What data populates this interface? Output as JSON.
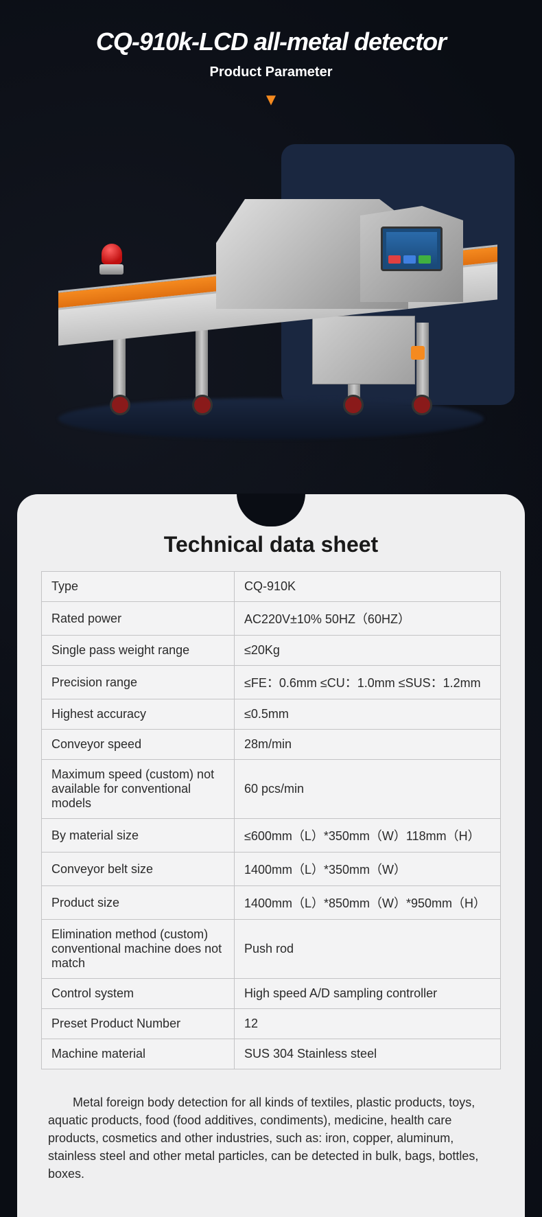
{
  "header": {
    "title": "CQ-910k-LCD all-metal detector",
    "subtitle": "Product Parameter"
  },
  "colors": {
    "accent": "#f58a1f",
    "alarm": "#c01010",
    "screen": "#1a4a7a",
    "backdrop": "#1a2740",
    "card_bg": "#efeff0",
    "page_bg": "#0a0d14",
    "border": "#c3c3c5",
    "text": "#2a2a2a"
  },
  "datasheet": {
    "title": "Technical data sheet",
    "rows": [
      {
        "label": "Type",
        "value": "CQ-910K"
      },
      {
        "label": "Rated power",
        "value": "AC220V±10% 50HZ（60HZ）"
      },
      {
        "label": "Single pass weight range",
        "value": "≤20Kg"
      },
      {
        "label": "Precision range",
        "value": "≤FE：0.6mm ≤CU：1.0mm ≤SUS：1.2mm"
      },
      {
        "label": "Highest accuracy",
        "value": "≤0.5mm"
      },
      {
        "label": "Conveyor speed",
        "value": "28m/min"
      },
      {
        "label": "Maximum speed (custom) not available for conventional models",
        "value": "60 pcs/min"
      },
      {
        "label": "By material size",
        "value": "≤600mm（L）*350mm（W）118mm（H）"
      },
      {
        "label": "Conveyor belt size",
        "value": "1400mm（L）*350mm（W）"
      },
      {
        "label": "Product size",
        "value": "1400mm（L）*850mm（W）*950mm（H）"
      },
      {
        "label": "Elimination method (custom) conventional machine does not match",
        "value": "Push rod"
      },
      {
        "label": "Control system",
        "value": "High speed A/D sampling controller"
      },
      {
        "label": "Preset Product Number",
        "value": "12"
      },
      {
        "label": "Machine material",
        "value": "SUS 304 Stainless steel"
      }
    ],
    "description": "Metal foreign body detection for all kinds of textiles, plastic products, toys, aquatic products, food (food additives, condiments), medicine, health care products, cosmetics and other industries, such as: iron, copper, aluminum, stainless steel and other metal particles, can be detected in bulk, bags, bottles, boxes."
  }
}
